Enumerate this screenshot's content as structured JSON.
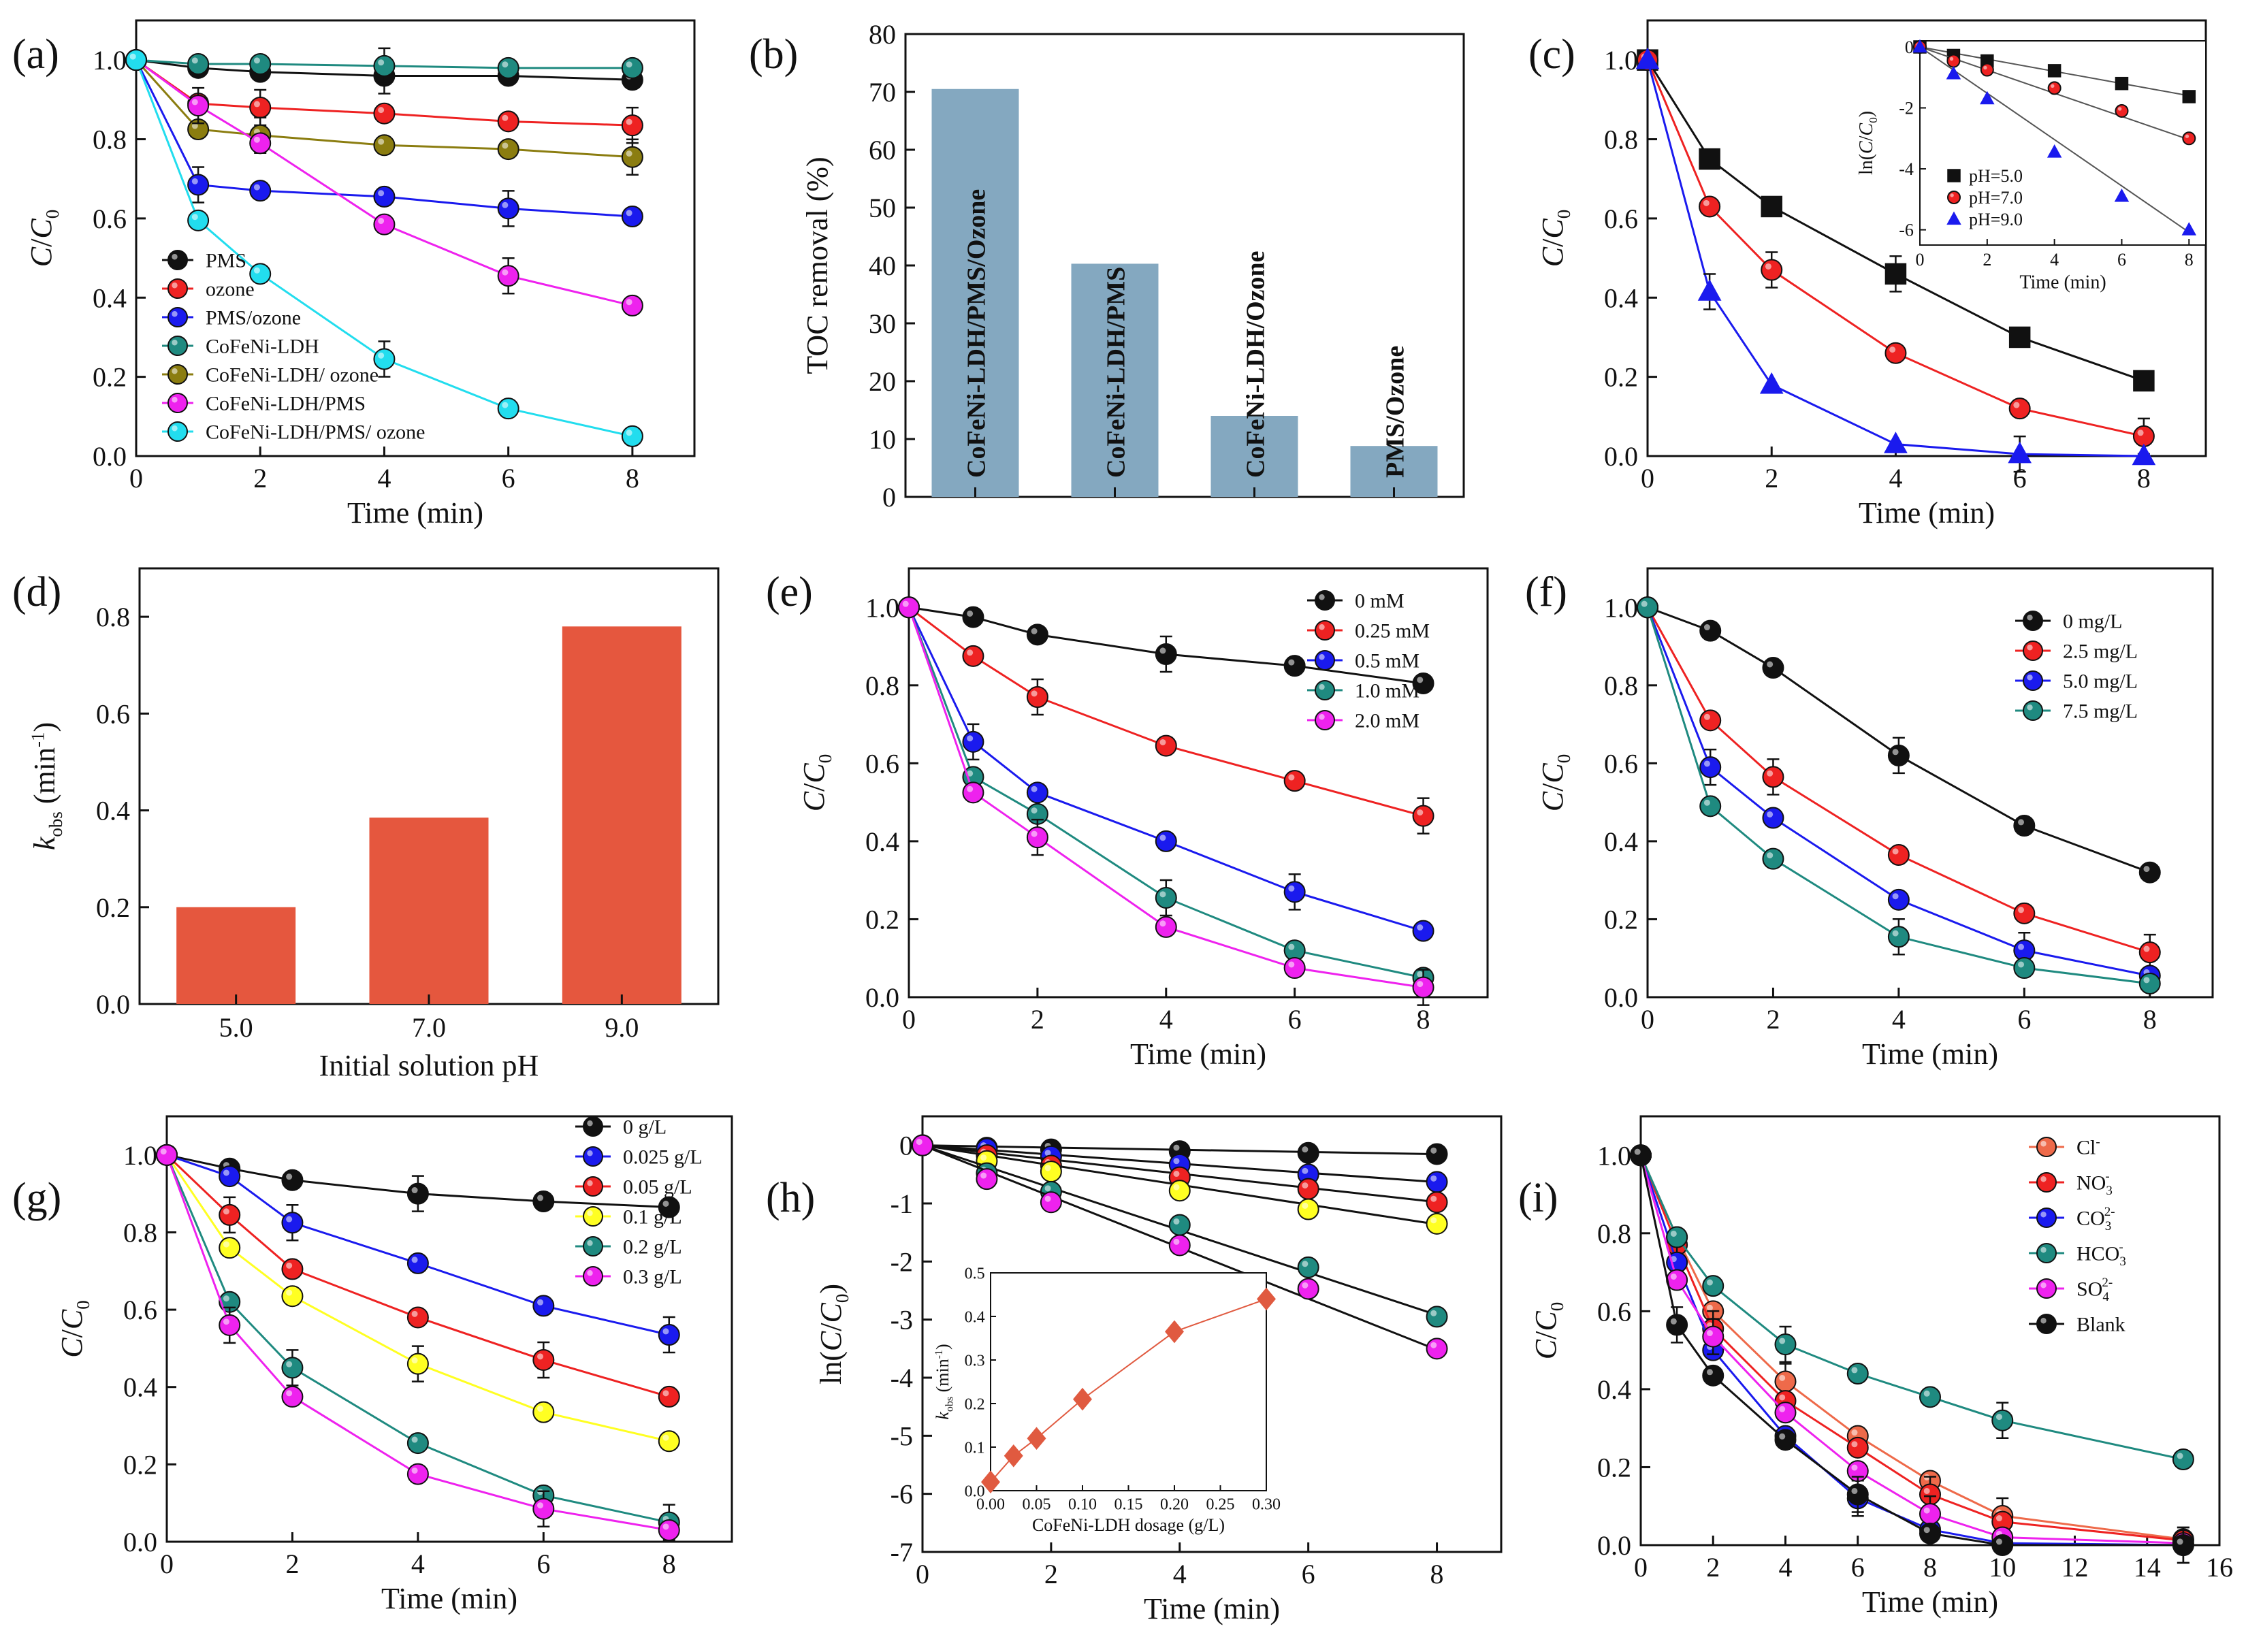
{
  "figure": {
    "panel_count": 9
  },
  "colors": {
    "black": "#111111",
    "red": "#ee2222",
    "blue": "#1a1aee",
    "teal": "#1f8a80",
    "olive": "#8b7d10",
    "magenta": "#ee22ee",
    "cyan": "#22ddee",
    "yellow": "#ffff22",
    "bar_blue": "#84a8c0",
    "bar_red": "#e5573e",
    "orange": "#ee6a4a",
    "diamond": "#e05a40"
  },
  "chart_data": [
    {
      "id": "a",
      "panel_label": "(a)",
      "type": "line",
      "xlabel": "Time (min)",
      "ylabel": "C/C0",
      "xlim": [
        0,
        9
      ],
      "ylim": [
        0,
        1.1
      ],
      "xticks": [
        0,
        2,
        4,
        6,
        8
      ],
      "yticks": [
        0.0,
        0.2,
        0.4,
        0.6,
        0.8,
        1.0
      ],
      "x": [
        0,
        1,
        2,
        4,
        6,
        8
      ],
      "legend_position": "left",
      "series": [
        {
          "name": "PMS",
          "color": "black",
          "marker": "circle",
          "values": [
            1.0,
            0.98,
            0.97,
            0.96,
            0.96,
            0.95
          ]
        },
        {
          "name": "ozone",
          "color": "red",
          "marker": "circle",
          "values": [
            1.0,
            0.89,
            0.88,
            0.865,
            0.845,
            0.835
          ]
        },
        {
          "name": "PMS/ozone",
          "color": "blue",
          "marker": "circle",
          "values": [
            1.0,
            0.685,
            0.67,
            0.655,
            0.625,
            0.605
          ]
        },
        {
          "name": "CoFeNi-LDH",
          "color": "teal",
          "marker": "circle",
          "values": [
            1.0,
            0.99,
            0.99,
            0.985,
            0.98,
            0.98
          ]
        },
        {
          "name": "CoFeNi-LDH/ ozone",
          "color": "olive",
          "marker": "circle",
          "values": [
            1.0,
            0.825,
            0.81,
            0.785,
            0.775,
            0.755
          ]
        },
        {
          "name": "CoFeNi-LDH/PMS",
          "color": "magenta",
          "marker": "circle",
          "values": [
            1.0,
            0.885,
            0.79,
            0.585,
            0.455,
            0.38
          ]
        },
        {
          "name": "CoFeNi-LDH/PMS/ ozone",
          "color": "cyan",
          "marker": "circle",
          "values": [
            1.0,
            0.595,
            0.46,
            0.245,
            0.12,
            0.05
          ]
        }
      ]
    },
    {
      "id": "b",
      "panel_label": "(b)",
      "type": "bar",
      "ylabel": "TOC removal (%)",
      "ylim": [
        0,
        80
      ],
      "yticks": [
        0,
        10,
        20,
        30,
        40,
        50,
        60,
        70,
        80
      ],
      "categories": [
        "CoFeNi-LDH/PMS/Ozone",
        "CoFeNi-LDH/PMS",
        "CoFeNi-LDH/Ozone",
        "PMS/Ozone"
      ],
      "values": [
        70.5,
        40.3,
        14.0,
        8.8
      ],
      "bar_color": "bar_blue"
    },
    {
      "id": "c",
      "panel_label": "(c)",
      "type": "line",
      "xlabel": "Time (min)",
      "ylabel": "C/C0",
      "xlim": [
        0,
        9
      ],
      "ylim": [
        0,
        1.1
      ],
      "xticks": [
        0,
        2,
        4,
        6,
        8
      ],
      "yticks": [
        0.0,
        0.2,
        0.4,
        0.6,
        0.8,
        1.0
      ],
      "x": [
        0,
        1,
        2,
        4,
        6,
        8
      ],
      "series": [
        {
          "name": "pH=5.0",
          "color": "black",
          "marker": "square",
          "values": [
            1.0,
            0.75,
            0.63,
            0.46,
            0.3,
            0.19
          ]
        },
        {
          "name": "pH=7.0",
          "color": "red",
          "marker": "circle",
          "values": [
            1.0,
            0.63,
            0.47,
            0.26,
            0.12,
            0.05
          ]
        },
        {
          "name": "pH=9.0",
          "color": "blue",
          "marker": "triangle",
          "values": [
            1.0,
            0.415,
            0.18,
            0.03,
            0.005,
            0.0
          ]
        }
      ],
      "inset": {
        "xlabel": "Time (min)",
        "ylabel": "ln(C/C0)",
        "xlim": [
          0,
          8.5
        ],
        "ylim": [
          -6.5,
          0.2
        ],
        "xticks": [
          0,
          2,
          4,
          6,
          8
        ],
        "yticks": [
          0,
          -2,
          -4,
          -6
        ],
        "x": [
          0,
          1,
          2,
          4,
          6,
          8
        ],
        "legend_position": "bottom-left",
        "series": [
          {
            "name": "pH=5.0",
            "color": "black",
            "marker": "square",
            "values": [
              0,
              -0.28,
              -0.46,
              -0.78,
              -1.2,
              -1.63
            ]
          },
          {
            "name": "pH=7.0",
            "color": "red",
            "marker": "circle",
            "values": [
              0,
              -0.46,
              -0.75,
              -1.35,
              -2.1,
              -3.0
            ]
          },
          {
            "name": "pH=9.0",
            "color": "blue",
            "marker": "triangle",
            "values": [
              0,
              -0.88,
              -1.7,
              -3.45,
              -4.9,
              -6.0
            ]
          }
        ],
        "fit_slopes": [
          -0.2,
          -0.38,
          -0.76
        ]
      }
    },
    {
      "id": "d",
      "panel_label": "(d)",
      "type": "bar",
      "xlabel": "Initial solution pH",
      "ylabel": "kobs (min-1)",
      "ylim": [
        0,
        0.9
      ],
      "yticks": [
        0.0,
        0.2,
        0.4,
        0.6,
        0.8
      ],
      "categories": [
        "5.0",
        "7.0",
        "9.0"
      ],
      "values": [
        0.2,
        0.385,
        0.78
      ],
      "bar_color": "bar_red"
    },
    {
      "id": "e",
      "panel_label": "(e)",
      "type": "line",
      "xlabel": "Time (min)",
      "ylabel": "C/C0",
      "xlim": [
        0,
        9
      ],
      "ylim": [
        0,
        1.1
      ],
      "xticks": [
        0,
        2,
        4,
        6,
        8
      ],
      "yticks": [
        0.0,
        0.2,
        0.4,
        0.6,
        0.8,
        1.0
      ],
      "x": [
        0,
        1,
        2,
        4,
        6,
        8
      ],
      "legend_position": "top-right",
      "series": [
        {
          "name": "0 mM",
          "color": "black",
          "marker": "circle",
          "values": [
            1.0,
            0.975,
            0.93,
            0.88,
            0.85,
            0.805
          ]
        },
        {
          "name": "0.25 mM",
          "color": "red",
          "marker": "circle",
          "values": [
            1.0,
            0.875,
            0.77,
            0.645,
            0.555,
            0.465
          ]
        },
        {
          "name": "0.5 mM",
          "color": "blue",
          "marker": "circle",
          "values": [
            1.0,
            0.655,
            0.525,
            0.4,
            0.27,
            0.17
          ]
        },
        {
          "name": "1.0 mM",
          "color": "teal",
          "marker": "circle",
          "values": [
            1.0,
            0.565,
            0.47,
            0.255,
            0.12,
            0.05
          ]
        },
        {
          "name": "2.0 mM",
          "color": "magenta",
          "marker": "circle",
          "values": [
            1.0,
            0.525,
            0.41,
            0.18,
            0.075,
            0.025
          ]
        }
      ]
    },
    {
      "id": "f",
      "panel_label": "(f)",
      "type": "line",
      "xlabel": "Time (min)",
      "ylabel": "C/C0",
      "xlim": [
        0,
        9
      ],
      "ylim": [
        0,
        1.1
      ],
      "xticks": [
        0,
        2,
        4,
        6,
        8
      ],
      "yticks": [
        0.0,
        0.2,
        0.4,
        0.6,
        0.8,
        1.0
      ],
      "x": [
        0,
        1,
        2,
        4,
        6,
        8
      ],
      "legend_position": "top-right",
      "series": [
        {
          "name": "0 mg/L",
          "color": "black",
          "marker": "circle",
          "values": [
            1.0,
            0.94,
            0.845,
            0.62,
            0.44,
            0.32
          ]
        },
        {
          "name": "2.5 mg/L",
          "color": "red",
          "marker": "circle",
          "values": [
            1.0,
            0.71,
            0.565,
            0.365,
            0.215,
            0.115
          ]
        },
        {
          "name": "5.0 mg/L",
          "color": "blue",
          "marker": "circle",
          "values": [
            1.0,
            0.59,
            0.46,
            0.25,
            0.12,
            0.055
          ]
        },
        {
          "name": "7.5 mg/L",
          "color": "teal",
          "marker": "circle",
          "values": [
            1.0,
            0.49,
            0.355,
            0.155,
            0.075,
            0.035
          ]
        }
      ]
    },
    {
      "id": "g",
      "panel_label": "(g)",
      "type": "line",
      "xlabel": "Time (min)",
      "ylabel": "C/C0",
      "xlim": [
        0,
        9
      ],
      "ylim": [
        0,
        1.1
      ],
      "xticks": [
        0,
        2,
        4,
        6,
        8
      ],
      "yticks": [
        0.0,
        0.2,
        0.4,
        0.6,
        0.8,
        1.0
      ],
      "x": [
        0,
        1,
        2,
        4,
        6,
        8
      ],
      "legend_position": "top-right",
      "series": [
        {
          "name": "0 g/L",
          "color": "black",
          "marker": "circle",
          "values": [
            1.0,
            0.965,
            0.935,
            0.9,
            0.88,
            0.865
          ]
        },
        {
          "name": "0.025 g/L",
          "color": "blue",
          "marker": "circle",
          "values": [
            1.0,
            0.945,
            0.825,
            0.72,
            0.61,
            0.535
          ]
        },
        {
          "name": "0.05 g/L",
          "color": "red",
          "marker": "circle",
          "values": [
            1.0,
            0.845,
            0.705,
            0.58,
            0.47,
            0.375
          ]
        },
        {
          "name": "0.1 g/L",
          "color": "yellow",
          "marker": "circle",
          "values": [
            1.0,
            0.76,
            0.635,
            0.46,
            0.335,
            0.26
          ]
        },
        {
          "name": "0.2 g/L",
          "color": "teal",
          "marker": "circle",
          "values": [
            1.0,
            0.62,
            0.45,
            0.255,
            0.12,
            0.05
          ]
        },
        {
          "name": "0.3 g/L",
          "color": "magenta",
          "marker": "circle",
          "values": [
            1.0,
            0.56,
            0.375,
            0.175,
            0.085,
            0.03
          ]
        }
      ]
    },
    {
      "id": "h",
      "panel_label": "(h)",
      "type": "scatter",
      "xlabel": "Time (min)",
      "ylabel": "ln(C/C0)",
      "xlim": [
        0,
        9
      ],
      "ylim": [
        -7,
        0.5
      ],
      "xticks": [
        0,
        2,
        4,
        6,
        8
      ],
      "yticks": [
        0,
        -1,
        -2,
        -3,
        -4,
        -5,
        -6,
        -7
      ],
      "x": [
        0,
        1,
        2,
        4,
        6,
        8
      ],
      "series": [
        {
          "name": "0 g/L",
          "color": "black",
          "marker": "circle",
          "values": [
            0,
            -0.04,
            -0.07,
            -0.1,
            -0.13,
            -0.15
          ],
          "fit_slope": -0.019
        },
        {
          "name": "0.025 g/L",
          "color": "blue",
          "marker": "circle",
          "values": [
            0,
            -0.06,
            -0.19,
            -0.33,
            -0.5,
            -0.63
          ],
          "fit_slope": -0.079
        },
        {
          "name": "0.05 g/L",
          "color": "red",
          "marker": "circle",
          "values": [
            0,
            -0.17,
            -0.35,
            -0.55,
            -0.75,
            -0.98
          ],
          "fit_slope": -0.122
        },
        {
          "name": "0.1 g/L",
          "color": "yellow",
          "marker": "circle",
          "values": [
            0,
            -0.27,
            -0.45,
            -0.78,
            -1.1,
            -1.35
          ],
          "fit_slope": -0.17
        },
        {
          "name": "0.2 g/L",
          "color": "teal",
          "marker": "circle",
          "values": [
            0,
            -0.48,
            -0.8,
            -1.37,
            -2.1,
            -2.95
          ],
          "fit_slope": -0.365
        },
        {
          "name": "0.3 g/L",
          "color": "magenta",
          "marker": "circle",
          "values": [
            0,
            -0.58,
            -0.98,
            -1.72,
            -2.47,
            -3.5
          ],
          "fit_slope": -0.44
        }
      ],
      "inset": {
        "xlabel": "CoFeNi-LDH dosage (g/L)",
        "ylabel": "kobs (min-1)",
        "xlim": [
          0,
          0.3
        ],
        "ylim": [
          0,
          0.5
        ],
        "xticks": [
          "0.00",
          "0.05",
          "0.10",
          "0.15",
          "0.20",
          "0.25",
          "0.30"
        ],
        "yticks": [
          "0.0",
          "0.1",
          "0.2",
          "0.3",
          "0.4",
          "0.5"
        ],
        "x": [
          0,
          0.025,
          0.05,
          0.1,
          0.2,
          0.3
        ],
        "values": [
          0.02,
          0.08,
          0.12,
          0.21,
          0.365,
          0.44
        ]
      }
    },
    {
      "id": "i",
      "panel_label": "(i)",
      "type": "line",
      "xlabel": "Time (min)",
      "ylabel": "C/C0",
      "xlim": [
        0,
        16
      ],
      "ylim": [
        0,
        1.1
      ],
      "xticks": [
        0,
        2,
        4,
        6,
        8,
        10,
        12,
        14,
        16
      ],
      "yticks": [
        0.0,
        0.2,
        0.4,
        0.6,
        0.8,
        1.0
      ],
      "x": [
        0,
        1,
        2,
        4,
        6,
        8,
        10,
        15
      ],
      "legend_position": "top-right",
      "series": [
        {
          "name": "Cl-",
          "color": "orange",
          "marker": "circle",
          "values": [
            1.0,
            0.79,
            0.6,
            0.42,
            0.28,
            0.165,
            0.075,
            0.015
          ]
        },
        {
          "name": "NO3-",
          "color": "red",
          "marker": "circle",
          "values": [
            1.0,
            0.77,
            0.555,
            0.37,
            0.25,
            0.13,
            0.06,
            0.012
          ]
        },
        {
          "name": "CO32-",
          "color": "blue",
          "marker": "circle",
          "values": [
            1.0,
            0.725,
            0.5,
            0.28,
            0.12,
            0.04,
            0.005,
            0.0
          ]
        },
        {
          "name": "HCO3-",
          "color": "teal",
          "marker": "circle",
          "values": [
            1.0,
            0.79,
            0.665,
            0.515,
            0.44,
            0.38,
            0.32,
            0.22
          ]
        },
        {
          "name": "SO42-",
          "color": "magenta",
          "marker": "circle",
          "values": [
            1.0,
            0.68,
            0.535,
            0.34,
            0.19,
            0.08,
            0.02,
            0.005
          ]
        },
        {
          "name": "Blank",
          "color": "black",
          "marker": "circle",
          "values": [
            1.0,
            0.565,
            0.435,
            0.27,
            0.13,
            0.03,
            0.0,
            0.0
          ]
        }
      ]
    }
  ]
}
